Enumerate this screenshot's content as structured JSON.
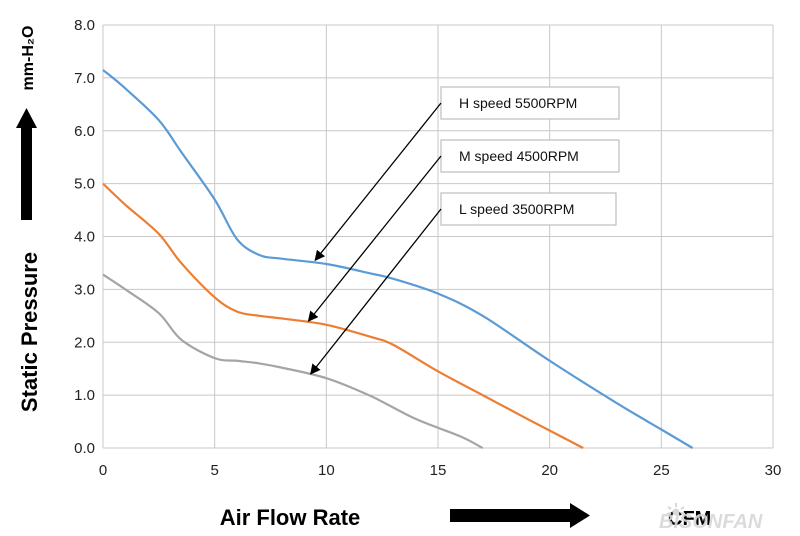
{
  "chart_data": {
    "type": "line",
    "x_range": [
      0,
      30
    ],
    "y_range": [
      0,
      8
    ],
    "x_ticks": [
      "0",
      "5",
      "10",
      "15",
      "20",
      "25",
      "30"
    ],
    "y_ticks": [
      "0.0",
      "1.0",
      "2.0",
      "3.0",
      "4.0",
      "5.0",
      "6.0",
      "7.0",
      "8.0"
    ],
    "xlabel": "Air  Flow  Rate",
    "xunit": "CFM",
    "ylabel": "Static   Pressure",
    "yunit": "mm-H₂O",
    "grid": true,
    "series": [
      {
        "name": "H  speed  5500RPM",
        "color": "#5b9bd5",
        "points": [
          [
            0,
            7.15
          ],
          [
            1,
            6.8
          ],
          [
            2.5,
            6.2
          ],
          [
            3.5,
            5.6
          ],
          [
            5,
            4.7
          ],
          [
            6,
            3.95
          ],
          [
            7,
            3.65
          ],
          [
            8,
            3.58
          ],
          [
            10,
            3.48
          ],
          [
            12,
            3.3
          ],
          [
            13,
            3.2
          ],
          [
            15,
            2.92
          ],
          [
            17,
            2.5
          ],
          [
            20,
            1.65
          ],
          [
            23,
            0.85
          ],
          [
            25,
            0.35
          ],
          [
            26.4,
            0.0
          ]
        ]
      },
      {
        "name": "M  speed  4500RPM",
        "color": "#ed7d31",
        "points": [
          [
            0,
            5.0
          ],
          [
            1,
            4.6
          ],
          [
            2.5,
            4.05
          ],
          [
            3.5,
            3.5
          ],
          [
            5,
            2.85
          ],
          [
            6,
            2.58
          ],
          [
            7,
            2.5
          ],
          [
            8,
            2.45
          ],
          [
            10,
            2.33
          ],
          [
            12,
            2.1
          ],
          [
            13,
            1.95
          ],
          [
            15,
            1.45
          ],
          [
            17,
            1.0
          ],
          [
            19,
            0.55
          ],
          [
            20.5,
            0.22
          ],
          [
            21.5,
            0.0
          ]
        ]
      },
      {
        "name": "L  speed  3500RPM",
        "color": "#a5a5a5",
        "points": [
          [
            0,
            3.28
          ],
          [
            1,
            3.0
          ],
          [
            2.5,
            2.55
          ],
          [
            3.5,
            2.05
          ],
          [
            5,
            1.7
          ],
          [
            6,
            1.65
          ],
          [
            7,
            1.6
          ],
          [
            8,
            1.52
          ],
          [
            10,
            1.32
          ],
          [
            12,
            0.98
          ],
          [
            14,
            0.55
          ],
          [
            16,
            0.22
          ],
          [
            17,
            0.0
          ]
        ]
      }
    ],
    "legend": {
      "placement": "top-right",
      "entries": [
        "H  speed  5500RPM",
        "M  speed  4500RPM",
        "L  speed  3500RPM"
      ],
      "arrow_targets": [
        [
          9.5,
          3.55
        ],
        [
          9.2,
          2.4
        ],
        [
          9.3,
          1.4
        ]
      ]
    }
  },
  "watermark": {
    "text": "BISONFAN",
    "icon": "sun-logo-icon"
  }
}
